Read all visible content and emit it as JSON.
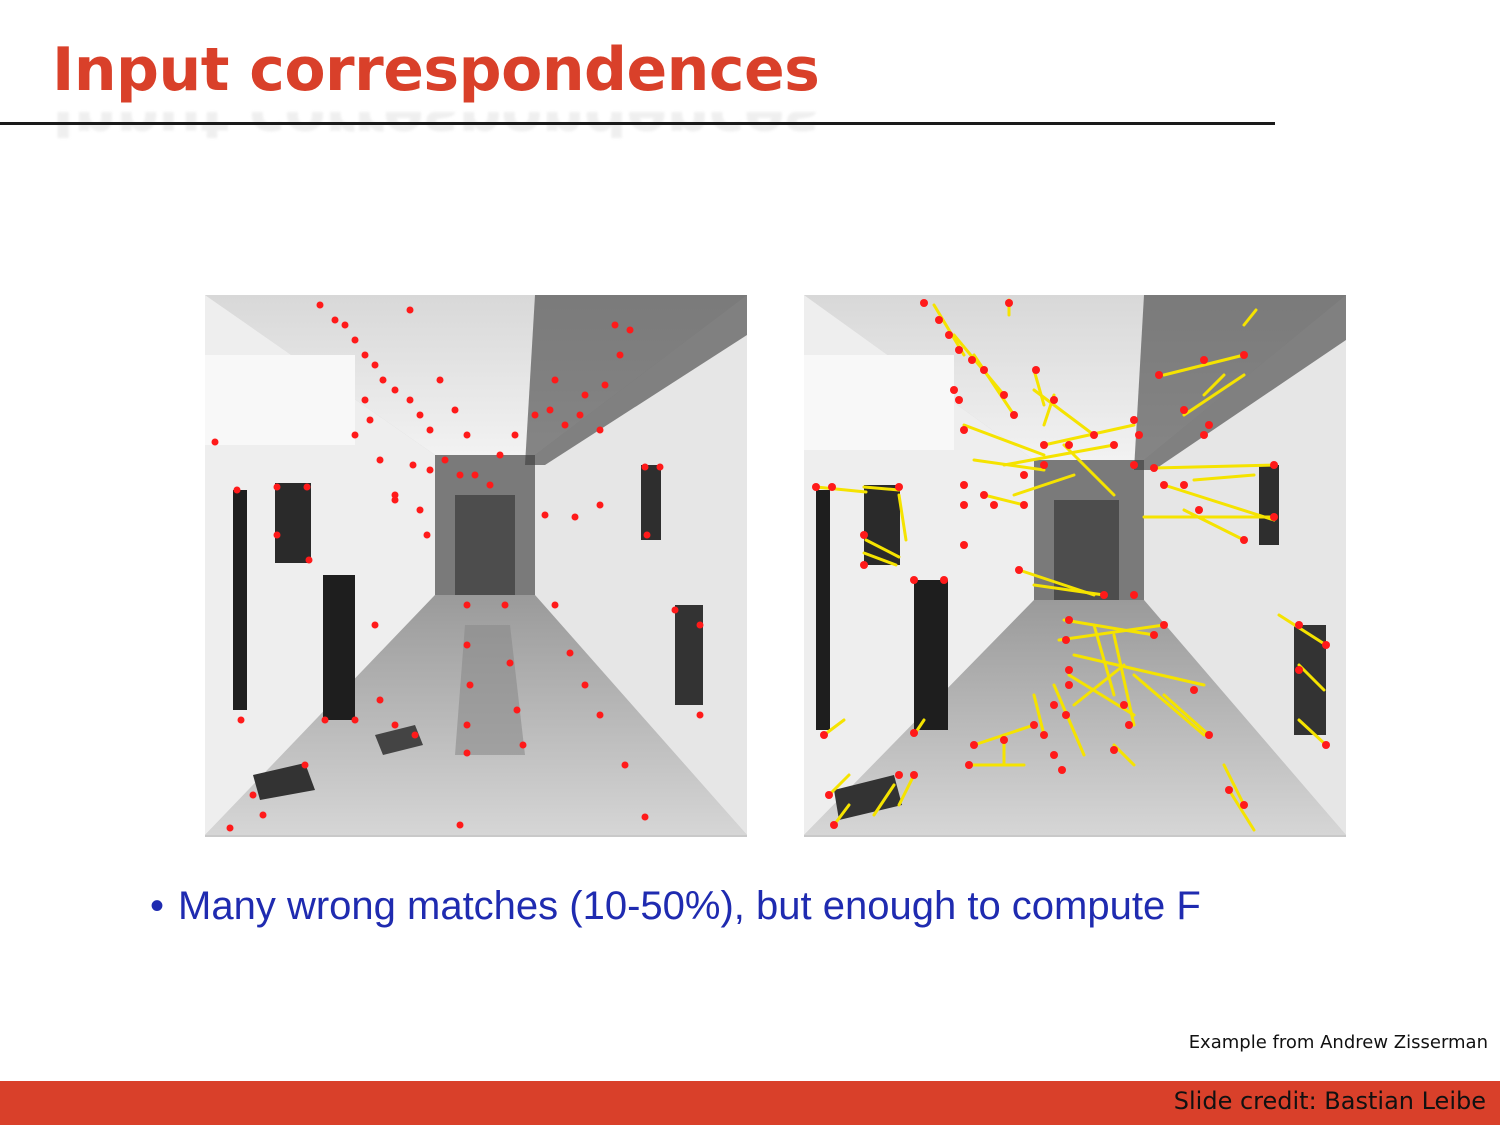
{
  "slide": {
    "title": "Input correspondences",
    "bullet_marker": "•",
    "bullet_text": "Many wrong matches (10-50%), but enough to compute F",
    "example_credit": "Example from Andrew Zisserman",
    "slide_credit": "Slide credit: Bastian Leibe"
  },
  "colors": {
    "title": "#d9402a",
    "footer_bar": "#d9402a",
    "bullet_text": "#1f2bb0",
    "feature_point": "#ff1a1a",
    "match_line": "#f5e300"
  },
  "figures": [
    {
      "image": "corridor-left-view",
      "overlay": "red feature points"
    },
    {
      "image": "corridor-right-view",
      "overlay": "red feature points with yellow match lines"
    }
  ]
}
